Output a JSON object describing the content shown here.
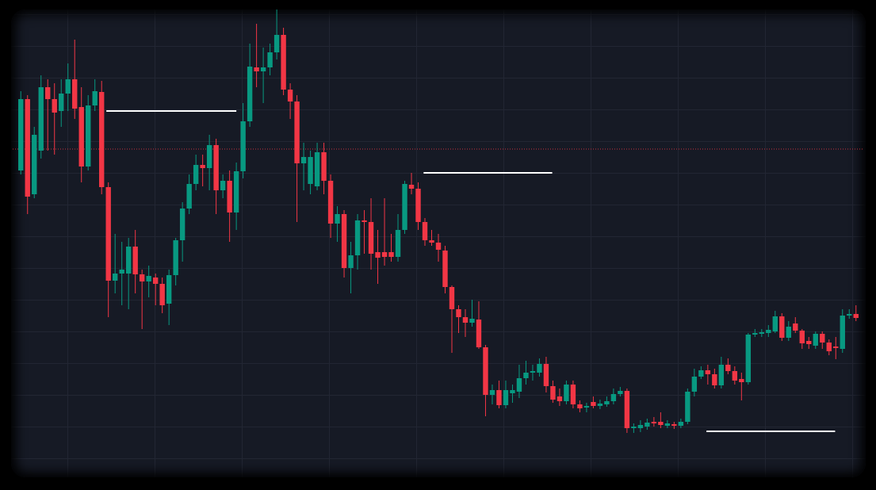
{
  "chart_data": {
    "type": "candlestick",
    "open": [
      403,
      493,
      373,
      428,
      508,
      493,
      478,
      500,
      518,
      483,
      408,
      485,
      502,
      382,
      264,
      273,
      273,
      307,
      272,
      263,
      268,
      260,
      235,
      271,
      315,
      355,
      386,
      410,
      406,
      435,
      378,
      390,
      350,
      402,
      465,
      533,
      528,
      533,
      552,
      574,
      505,
      490,
      412,
      386,
      383,
      426,
      390,
      336,
      348,
      280,
      296,
      340,
      338,
      300,
      300,
      300,
      294,
      328,
      385,
      380,
      338,
      315,
      312,
      302,
      256,
      228,
      218,
      211,
      215,
      180,
      120,
      126,
      107,
      122,
      124,
      141,
      148,
      148,
      159,
      131,
      118,
      112,
      133,
      108,
      104,
      111,
      106,
      108,
      112,
      121,
      125,
      78,
      78,
      80,
      86,
      86,
      81,
      83,
      81,
      86,
      124,
      143,
      151,
      146,
      132,
      158,
      150,
      140,
      136,
      196,
      197,
      198,
      200,
      219,
      192,
      210,
      201,
      188,
      182,
      197,
      186,
      181,
      178,
      220,
      222
    ],
    "high": [
      503,
      498,
      458,
      523,
      518,
      513,
      518,
      538,
      568,
      508,
      498,
      518,
      516,
      388,
      323,
      313,
      318,
      328,
      278,
      283,
      273,
      268,
      278,
      318,
      363,
      398,
      423,
      423,
      448,
      443,
      398,
      403,
      413,
      488,
      563,
      588,
      558,
      563,
      606,
      583,
      513,
      498,
      438,
      428,
      438,
      438,
      398,
      358,
      353,
      313,
      348,
      353,
      368,
      328,
      368,
      323,
      348,
      390,
      400,
      388,
      343,
      328,
      323,
      308,
      258,
      233,
      228,
      240,
      238,
      183,
      133,
      138,
      138,
      133,
      158,
      163,
      158,
      166,
      168,
      138,
      128,
      138,
      138,
      113,
      110,
      118,
      114,
      118,
      128,
      130,
      128,
      84,
      88,
      90,
      92,
      98,
      88,
      86,
      90,
      128,
      153,
      156,
      158,
      153,
      168,
      166,
      156,
      148,
      198,
      203,
      203,
      208,
      226,
      223,
      213,
      218,
      203,
      193,
      200,
      200,
      190,
      193,
      228,
      228,
      233
    ],
    "low": [
      398,
      348,
      368,
      418,
      428,
      423,
      458,
      478,
      468,
      388,
      403,
      478,
      373,
      218,
      248,
      233,
      228,
      248,
      203,
      243,
      233,
      223,
      208,
      258,
      288,
      348,
      378,
      383,
      378,
      348,
      368,
      313,
      328,
      393,
      458,
      508,
      488,
      523,
      543,
      498,
      468,
      338,
      378,
      373,
      378,
      373,
      318,
      313,
      268,
      248,
      278,
      298,
      278,
      260,
      283,
      288,
      288,
      323,
      373,
      328,
      308,
      308,
      288,
      248,
      173,
      198,
      193,
      206,
      178,
      93,
      108,
      103,
      103,
      110,
      116,
      133,
      138,
      143,
      123,
      110,
      106,
      108,
      103,
      98,
      98,
      103,
      102,
      105,
      108,
      118,
      72,
      72,
      73,
      76,
      80,
      78,
      78,
      77,
      78,
      83,
      118,
      140,
      133,
      128,
      128,
      146,
      133,
      113,
      133,
      193,
      193,
      193,
      198,
      188,
      188,
      198,
      178,
      178,
      178,
      178,
      170,
      165,
      173,
      216,
      213
    ],
    "close": [
      493,
      370,
      448,
      508,
      493,
      476,
      500,
      518,
      481,
      408,
      485,
      503,
      382,
      264,
      273,
      278,
      307,
      272,
      263,
      270,
      260,
      233,
      271,
      315,
      355,
      386,
      410,
      406,
      435,
      378,
      390,
      350,
      402,
      465,
      534,
      528,
      533,
      552,
      574,
      505,
      490,
      412,
      420,
      420,
      426,
      390,
      336,
      348,
      280,
      296,
      340,
      338,
      298,
      293,
      294,
      294,
      328,
      386,
      380,
      338,
      315,
      312,
      303,
      256,
      228,
      218,
      211,
      216,
      180,
      120,
      126,
      107,
      126,
      126,
      141,
      148,
      150,
      159,
      131,
      114,
      112,
      133,
      108,
      103,
      106,
      106,
      109,
      112,
      121,
      125,
      78,
      80,
      82,
      85,
      84,
      82,
      84,
      81,
      86,
      124,
      143,
      151,
      146,
      132,
      158,
      150,
      138,
      136,
      196,
      198,
      199,
      202,
      219,
      192,
      206,
      201,
      185,
      184,
      197,
      186,
      175,
      179,
      220,
      222,
      217
    ],
    "up_color": "#089981",
    "down_color": "#f23645",
    "ylim": [
      0,
      618
    ],
    "levels": [
      {
        "value": 478,
        "x_range": [
          12.7,
          32
        ]
      },
      {
        "value": 400,
        "x_range": [
          59.8,
          78.9
        ]
      },
      {
        "value": 74,
        "x_range": [
          101.8,
          120.9
        ]
      }
    ],
    "level_color": "#ffffff",
    "reference_line": {
      "value": 430,
      "color": "#f23645"
    }
  }
}
